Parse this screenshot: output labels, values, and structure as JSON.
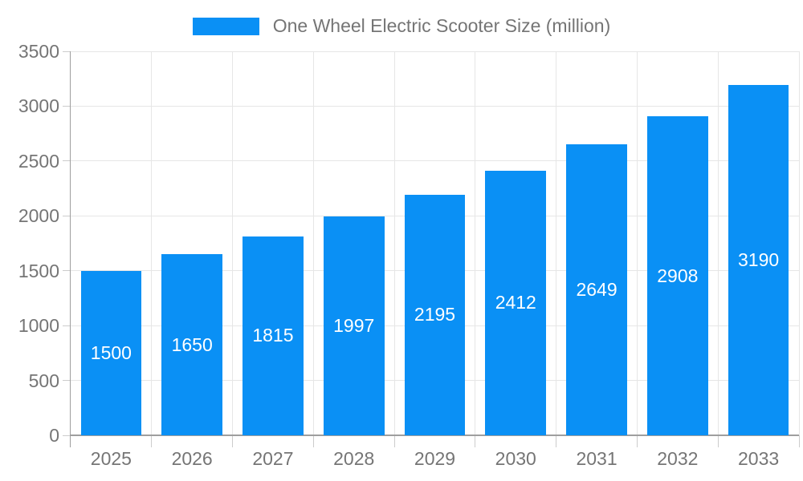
{
  "chart_data": {
    "type": "bar",
    "title": "One Wheel Electric Scooter Size (million)",
    "categories": [
      "2025",
      "2026",
      "2027",
      "2028",
      "2029",
      "2030",
      "2031",
      "2032",
      "2033"
    ],
    "values": [
      1500,
      1650,
      1815,
      1997,
      2195,
      2412,
      2649,
      2908,
      3190
    ],
    "xlabel": "",
    "ylabel": "",
    "ylim": [
      0,
      3500
    ],
    "ytick_step": 500,
    "grid": true,
    "legend_position": "top-center",
    "value_label_position": "inside-center",
    "colors": {
      "bar": "#0a90f5",
      "value_label": "#ffffff",
      "axis_text": "#757575",
      "gridline": "#e6e6e6",
      "axis_line": "#9e9e9e",
      "tick": "#cccccc",
      "background": "#ffffff"
    }
  }
}
